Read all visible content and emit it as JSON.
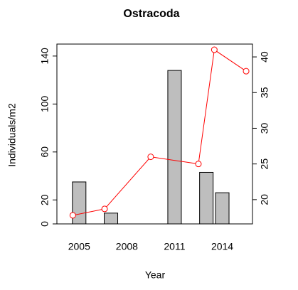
{
  "chart_data": {
    "type": "bar-line",
    "title": "Ostracoda",
    "x_label": "Year",
    "y_label": "Individuals/m2",
    "bars": {
      "x": [
        2005,
        2007,
        2011,
        2013,
        2014
      ],
      "values": [
        35,
        9,
        128,
        43,
        26
      ],
      "color": "#bebebe"
    },
    "line": {
      "x": [
        2004.6,
        2006.6,
        2009.5,
        2012.5,
        2013.5,
        2015.5
      ],
      "values": [
        17.8,
        18.7,
        26,
        25,
        41,
        38
      ],
      "color": "#ff0000",
      "axis": "y2"
    },
    "xlim": [
      2003.6,
      2015.9
    ],
    "xticks": [
      2005,
      2008,
      2011,
      2014
    ],
    "ylim": [
      0,
      150
    ],
    "yticks": [
      0,
      20,
      60,
      100,
      140
    ],
    "y2lim": [
      16.6,
      41.8
    ],
    "y2ticks": [
      20,
      25,
      30,
      35,
      40
    ]
  }
}
